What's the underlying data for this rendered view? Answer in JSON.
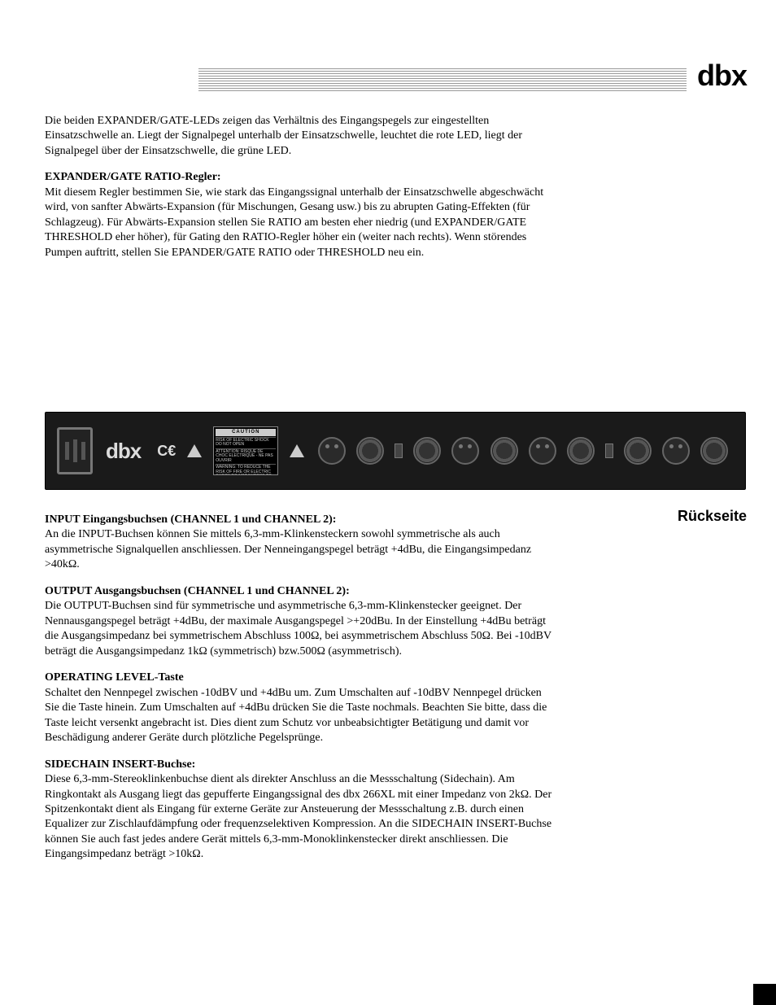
{
  "brand_logo": "dbx",
  "section1": {
    "intro": "Die beiden EXPANDER/GATE-LEDs zeigen das Verhältnis des Eingangspegels zur eingestellten Einsatzschwelle an. Liegt der Signalpegel unterhalb der Einsatzschwelle, leuchtet die rote LED, liegt der Signalpegel über der Einsatzschwelle, die grüne LED.",
    "h1": "EXPANDER/GATE RATIO-Regler:",
    "p1": "Mit diesem Regler bestimmen Sie, wie stark das Eingangssignal unterhalb der Einsatzschwelle abgeschwächt wird, von sanfter Abwärts-Expansion (für Mischungen, Gesang usw.) bis zu abrupten Gating-Effekten (für Schlagzeug). Für Abwärts-Expansion stellen Sie RATIO am besten eher niedrig (und EXPANDER/GATE THRESHOLD eher höher), für Gating den RATIO-Regler höher ein (weiter nach rechts). Wenn störendes Pumpen auftritt, stellen Sie EPANDER/GATE RATIO oder THRESHOLD neu ein."
  },
  "panel": {
    "caution_head": "CAUTION",
    "caution_body1": "RISK OF ELECTRIC SHOCK DO NOT OPEN",
    "caution_body2": "ATTENTION: RISQUE DE CHOC ELECTRIQUE - NE PAS OUVRIR",
    "caution_body3": "WARNING: TO REDUCE THE RISK OF FIRE OR ELECTRIC SHOCK DO NOT EXPOSE TO RAIN OR MOISTURE",
    "ce_mark": "C€"
  },
  "side_title": "Rückseite",
  "section2": {
    "h1": "INPUT Eingangsbuchsen (CHANNEL 1 und CHANNEL 2):",
    "p1": "An die INPUT-Buchsen können Sie mittels 6,3-mm-Klinkensteckern sowohl symmetrische als auch asymmetrische Signalquellen anschliessen. Der Nenneingangspegel beträgt +4dBu, die Eingangsimpedanz >40kΩ.",
    "h2": "OUTPUT Ausgangsbuchsen (CHANNEL 1 und CHANNEL 2):",
    "p2": "Die OUTPUT-Buchsen sind für symmetrische und asymmetrische 6,3-mm-Klinkenstecker geeignet. Der Nennausgangspegel beträgt +4dBu, der maximale Ausgangspegel >+20dBu. In der Einstellung +4dBu beträgt die Ausgangsimpedanz bei symmetrischem Abschluss 100Ω, bei asymmetrischem Abschluss 50Ω. Bei -10dBV beträgt die Ausgangsimpedanz 1kΩ (symmetrisch) bzw.500Ω (asymmetrisch).",
    "h3": "OPERATING LEVEL-Taste",
    "p3": "Schaltet den Nennpegel zwischen -10dBV und +4dBu um. Zum Umschalten auf -10dBV Nennpegel drücken Sie die Taste hinein. Zum Umschalten auf +4dBu drücken Sie die Taste nochmals. Beachten Sie bitte, dass die Taste leicht versenkt angebracht ist. Dies dient zum Schutz vor unbeabsichtigter Betätigung und damit vor Beschädigung anderer Geräte durch plötzliche Pegelsprünge.",
    "h4": "SIDECHAIN INSERT-Buchse:",
    "p4": "Diese 6,3-mm-Stereoklinkenbuchse dient als direkter Anschluss an die Messschaltung (Sidechain). Am Ringkontakt als Ausgang liegt das gepufferte Eingangssignal des dbx 266XL mit einer Impedanz von 2kΩ. Der Spitzenkontakt dient als Eingang für externe Geräte zur Ansteuerung der Messschaltung z.B. durch einen Equalizer zur Zischlaufdämpfung oder frequenzselektiven Kompression. An die SIDECHAIN INSERT-Buchse können Sie auch fast jedes andere Gerät mittels 6,3-mm-Monoklinkenstecker direkt anschliessen. Die Eingangsimpedanz beträgt >10kΩ."
  }
}
